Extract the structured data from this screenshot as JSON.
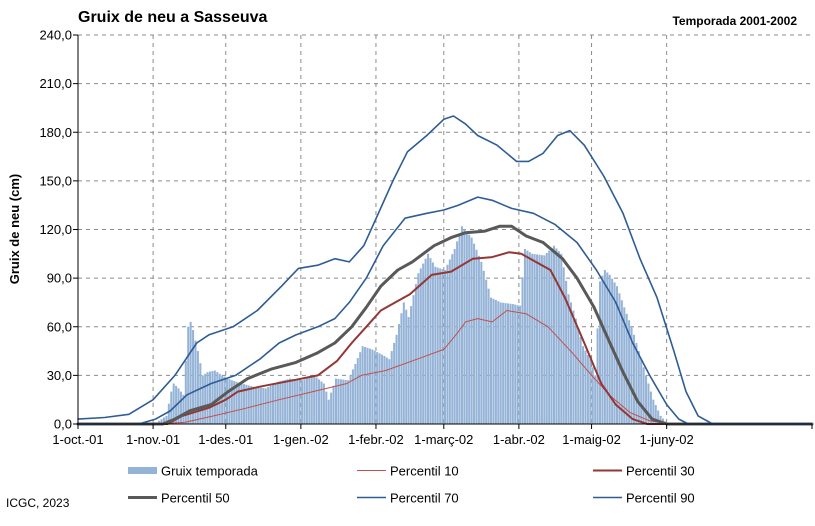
{
  "chart_data": {
    "type": "bar",
    "title": "Gruix de neu a Sasseuva",
    "subtitle": "Temporada 2001-2002",
    "xlabel": "",
    "ylabel": "Gruix de neu (cm)",
    "ylim": [
      0,
      240
    ],
    "yticks": [
      "0,0",
      "30,0",
      "60,0",
      "90,0",
      "120,0",
      "150,0",
      "180,0",
      "210,0",
      "240,0"
    ],
    "xlim": [
      "2001-10-01",
      "2002-07-31"
    ],
    "xticks": [
      {
        "date": "2001-10-01",
        "label": "1-oct.-01"
      },
      {
        "date": "2001-11-01",
        "label": "1-nov.-01"
      },
      {
        "date": "2001-12-01",
        "label": "1-des.-01"
      },
      {
        "date": "2002-01-01",
        "label": "1-gen.-02"
      },
      {
        "date": "2002-02-01",
        "label": "1-febr.-02"
      },
      {
        "date": "2002-03-01",
        "label": "1-març-02"
      },
      {
        "date": "2002-04-01",
        "label": "1-abr.-02"
      },
      {
        "date": "2002-05-01",
        "label": "1-maig-02"
      },
      {
        "date": "2002-06-01",
        "label": "1-juny-02"
      }
    ],
    "grid": true,
    "legend_position": "bottom",
    "bar_series": {
      "name": "Gruix temporada",
      "color": "#95B3D7",
      "points": [
        [
          "2001-11-01",
          0
        ],
        [
          "2001-11-06",
          5
        ],
        [
          "2001-11-08",
          20
        ],
        [
          "2001-11-09",
          25
        ],
        [
          "2001-11-11",
          22
        ],
        [
          "2001-11-13",
          18
        ],
        [
          "2001-11-15",
          60
        ],
        [
          "2001-11-16",
          63
        ],
        [
          "2001-11-17",
          58
        ],
        [
          "2001-11-19",
          45
        ],
        [
          "2001-11-21",
          30
        ],
        [
          "2001-11-23",
          32
        ],
        [
          "2001-11-26",
          33
        ],
        [
          "2001-11-29",
          30
        ],
        [
          "2001-12-03",
          27
        ],
        [
          "2001-12-07",
          25
        ],
        [
          "2001-12-12",
          23
        ],
        [
          "2001-12-17",
          22
        ],
        [
          "2001-12-22",
          26
        ],
        [
          "2001-12-27",
          28
        ],
        [
          "2002-01-01",
          27
        ],
        [
          "2002-01-06",
          30
        ],
        [
          "2002-01-10",
          25
        ],
        [
          "2002-01-12",
          15
        ],
        [
          "2002-01-15",
          28
        ],
        [
          "2002-01-20",
          27
        ],
        [
          "2002-01-23",
          37
        ],
        [
          "2002-01-26",
          48
        ],
        [
          "2002-01-30",
          46
        ],
        [
          "2002-02-04",
          42
        ],
        [
          "2002-02-06",
          40
        ],
        [
          "2002-02-09",
          55
        ],
        [
          "2002-02-12",
          75
        ],
        [
          "2002-02-14",
          66
        ],
        [
          "2002-02-18",
          93
        ],
        [
          "2002-02-22",
          105
        ],
        [
          "2002-02-25",
          97
        ],
        [
          "2002-03-01",
          95
        ],
        [
          "2002-03-05",
          108
        ],
        [
          "2002-03-08",
          122
        ],
        [
          "2002-03-12",
          115
        ],
        [
          "2002-03-16",
          100
        ],
        [
          "2002-03-20",
          78
        ],
        [
          "2002-03-24",
          75
        ],
        [
          "2002-03-29",
          74
        ],
        [
          "2002-04-01",
          73
        ],
        [
          "2002-04-03",
          108
        ],
        [
          "2002-04-06",
          105
        ],
        [
          "2002-04-11",
          104
        ],
        [
          "2002-04-15",
          110
        ],
        [
          "2002-04-18",
          105
        ],
        [
          "2002-04-21",
          80
        ],
        [
          "2002-04-24",
          65
        ],
        [
          "2002-04-27",
          48
        ],
        [
          "2002-04-30",
          40
        ],
        [
          "2002-05-02",
          30
        ],
        [
          "2002-05-04",
          88
        ],
        [
          "2002-05-06",
          95
        ],
        [
          "2002-05-08",
          92
        ],
        [
          "2002-05-11",
          85
        ],
        [
          "2002-05-14",
          72
        ],
        [
          "2002-05-17",
          60
        ],
        [
          "2002-05-20",
          45
        ],
        [
          "2002-05-23",
          30
        ],
        [
          "2002-05-26",
          15
        ],
        [
          "2002-05-29",
          5
        ],
        [
          "2002-06-01",
          0
        ]
      ]
    },
    "series": [
      {
        "name": "Percentil 10",
        "color": "#C0504D",
        "width": 1,
        "points": [
          [
            "2001-11-01",
            0
          ],
          [
            "2001-11-14",
            1
          ],
          [
            "2001-11-26",
            5
          ],
          [
            "2001-12-10",
            10
          ],
          [
            "2001-12-23",
            15
          ],
          [
            "2002-01-06",
            20
          ],
          [
            "2002-01-20",
            25
          ],
          [
            "2002-01-26",
            30
          ],
          [
            "2002-02-05",
            33
          ],
          [
            "2002-02-18",
            40
          ],
          [
            "2002-03-01",
            46
          ],
          [
            "2002-03-06",
            55
          ],
          [
            "2002-03-10",
            63
          ],
          [
            "2002-03-15",
            65
          ],
          [
            "2002-03-21",
            63
          ],
          [
            "2002-03-27",
            70
          ],
          [
            "2002-04-04",
            68
          ],
          [
            "2002-04-13",
            60
          ],
          [
            "2002-04-23",
            44
          ],
          [
            "2002-05-01",
            30
          ],
          [
            "2002-05-09",
            17
          ],
          [
            "2002-05-17",
            7
          ],
          [
            "2002-05-25",
            2
          ],
          [
            "2002-06-03",
            0
          ]
        ]
      },
      {
        "name": "Percentil 30",
        "color": "#943634",
        "width": 2,
        "points": [
          [
            "2001-11-07",
            0
          ],
          [
            "2001-11-13",
            5
          ],
          [
            "2001-11-24",
            10
          ],
          [
            "2001-12-01",
            15
          ],
          [
            "2001-12-06",
            20
          ],
          [
            "2001-12-15",
            23
          ],
          [
            "2001-12-29",
            27
          ],
          [
            "2002-01-08",
            30
          ],
          [
            "2002-01-16",
            39
          ],
          [
            "2002-01-22",
            50
          ],
          [
            "2002-01-28",
            60
          ],
          [
            "2002-02-03",
            70
          ],
          [
            "2002-02-09",
            75
          ],
          [
            "2002-02-15",
            80
          ],
          [
            "2002-02-24",
            92
          ],
          [
            "2002-03-04",
            94
          ],
          [
            "2002-03-13",
            102
          ],
          [
            "2002-03-21",
            103
          ],
          [
            "2002-03-28",
            106
          ],
          [
            "2002-04-02",
            105
          ],
          [
            "2002-04-08",
            100
          ],
          [
            "2002-04-14",
            95
          ],
          [
            "2002-04-20",
            78
          ],
          [
            "2002-04-28",
            50
          ],
          [
            "2002-05-05",
            25
          ],
          [
            "2002-05-11",
            12
          ],
          [
            "2002-05-18",
            3
          ],
          [
            "2002-05-24",
            0
          ]
        ]
      },
      {
        "name": "Percentil 50",
        "color": "#595959",
        "width": 3,
        "points": [
          [
            "2001-11-05",
            0
          ],
          [
            "2001-11-10",
            3
          ],
          [
            "2001-11-16",
            8
          ],
          [
            "2001-11-25",
            12
          ],
          [
            "2001-12-02",
            20
          ],
          [
            "2001-12-10",
            28
          ],
          [
            "2001-12-20",
            34
          ],
          [
            "2001-12-30",
            38
          ],
          [
            "2002-01-08",
            44
          ],
          [
            "2002-01-15",
            50
          ],
          [
            "2002-01-22",
            60
          ],
          [
            "2002-01-28",
            72
          ],
          [
            "2002-02-03",
            85
          ],
          [
            "2002-02-10",
            95
          ],
          [
            "2002-02-16",
            100
          ],
          [
            "2002-02-25",
            110
          ],
          [
            "2002-03-04",
            115
          ],
          [
            "2002-03-10",
            118
          ],
          [
            "2002-03-18",
            119
          ],
          [
            "2002-03-24",
            122
          ],
          [
            "2002-03-29",
            122
          ],
          [
            "2002-04-04",
            116
          ],
          [
            "2002-04-11",
            112
          ],
          [
            "2002-04-19",
            102
          ],
          [
            "2002-04-25",
            90
          ],
          [
            "2002-05-02",
            72
          ],
          [
            "2002-05-08",
            52
          ],
          [
            "2002-05-14",
            32
          ],
          [
            "2002-05-20",
            14
          ],
          [
            "2002-05-26",
            3
          ],
          [
            "2002-06-01",
            0
          ]
        ]
      },
      {
        "name": "Percentil 70",
        "color": "#2E5C96",
        "width": 1.6,
        "points": [
          [
            "2001-10-26",
            0
          ],
          [
            "2001-11-02",
            3
          ],
          [
            "2001-11-08",
            8
          ],
          [
            "2001-11-15",
            18
          ],
          [
            "2001-11-25",
            25
          ],
          [
            "2001-12-05",
            30
          ],
          [
            "2001-12-15",
            40
          ],
          [
            "2001-12-23",
            50
          ],
          [
            "2001-12-30",
            55
          ],
          [
            "2002-01-08",
            60
          ],
          [
            "2002-01-15",
            65
          ],
          [
            "2002-01-21",
            75
          ],
          [
            "2002-01-28",
            90
          ],
          [
            "2002-02-04",
            110
          ],
          [
            "2002-02-13",
            127
          ],
          [
            "2002-02-22",
            130
          ],
          [
            "2002-03-01",
            132
          ],
          [
            "2002-03-07",
            135
          ],
          [
            "2002-03-15",
            140
          ],
          [
            "2002-03-21",
            138
          ],
          [
            "2002-03-29",
            133
          ],
          [
            "2002-04-07",
            130
          ],
          [
            "2002-04-16",
            123
          ],
          [
            "2002-04-25",
            112
          ],
          [
            "2002-05-03",
            95
          ],
          [
            "2002-05-11",
            75
          ],
          [
            "2002-05-18",
            50
          ],
          [
            "2002-05-25",
            30
          ],
          [
            "2002-06-01",
            12
          ],
          [
            "2002-06-06",
            3
          ],
          [
            "2002-06-10",
            0
          ]
        ]
      },
      {
        "name": "Percentil 90",
        "color": "#2E5C96",
        "width": 1.6,
        "points": [
          [
            "2001-10-01",
            3
          ],
          [
            "2001-10-12",
            4
          ],
          [
            "2001-10-22",
            6
          ],
          [
            "2001-11-01",
            15
          ],
          [
            "2001-11-10",
            30
          ],
          [
            "2001-11-19",
            50
          ],
          [
            "2001-11-24",
            55
          ],
          [
            "2001-12-04",
            60
          ],
          [
            "2001-12-14",
            70
          ],
          [
            "2001-12-24",
            85
          ],
          [
            "2001-12-31",
            96
          ],
          [
            "2002-01-08",
            98
          ],
          [
            "2002-01-15",
            102
          ],
          [
            "2002-01-21",
            100
          ],
          [
            "2002-01-27",
            110
          ],
          [
            "2002-02-02",
            130
          ],
          [
            "2002-02-08",
            150
          ],
          [
            "2002-02-14",
            168
          ],
          [
            "2002-02-22",
            178
          ],
          [
            "2002-03-01",
            188
          ],
          [
            "2002-03-05",
            190
          ],
          [
            "2002-03-10",
            185
          ],
          [
            "2002-03-15",
            178
          ],
          [
            "2002-03-23",
            172
          ],
          [
            "2002-03-31",
            162
          ],
          [
            "2002-04-05",
            162
          ],
          [
            "2002-04-11",
            167
          ],
          [
            "2002-04-17",
            178
          ],
          [
            "2002-04-22",
            181
          ],
          [
            "2002-04-28",
            172
          ],
          [
            "2002-05-06",
            153
          ],
          [
            "2002-05-14",
            130
          ],
          [
            "2002-05-21",
            102
          ],
          [
            "2002-05-28",
            78
          ],
          [
            "2002-06-04",
            45
          ],
          [
            "2002-06-09",
            20
          ],
          [
            "2002-06-14",
            5
          ],
          [
            "2002-06-20",
            0
          ]
        ]
      }
    ],
    "legend": [
      {
        "name": "Gruix temporada",
        "kind": "bar",
        "color": "#95B3D7"
      },
      {
        "name": "Percentil 10",
        "kind": "line",
        "color": "#C0504D",
        "width": 1
      },
      {
        "name": "Percentil 30",
        "kind": "line",
        "color": "#943634",
        "width": 2
      },
      {
        "name": "Percentil 50",
        "kind": "line",
        "color": "#595959",
        "width": 3
      },
      {
        "name": "Percentil 70",
        "kind": "line",
        "color": "#2E5C96",
        "width": 1.6
      },
      {
        "name": "Percentil 90",
        "kind": "line",
        "color": "#2E5C96",
        "width": 1.6
      }
    ]
  },
  "footer": {
    "credit": "ICGC, 2023"
  }
}
